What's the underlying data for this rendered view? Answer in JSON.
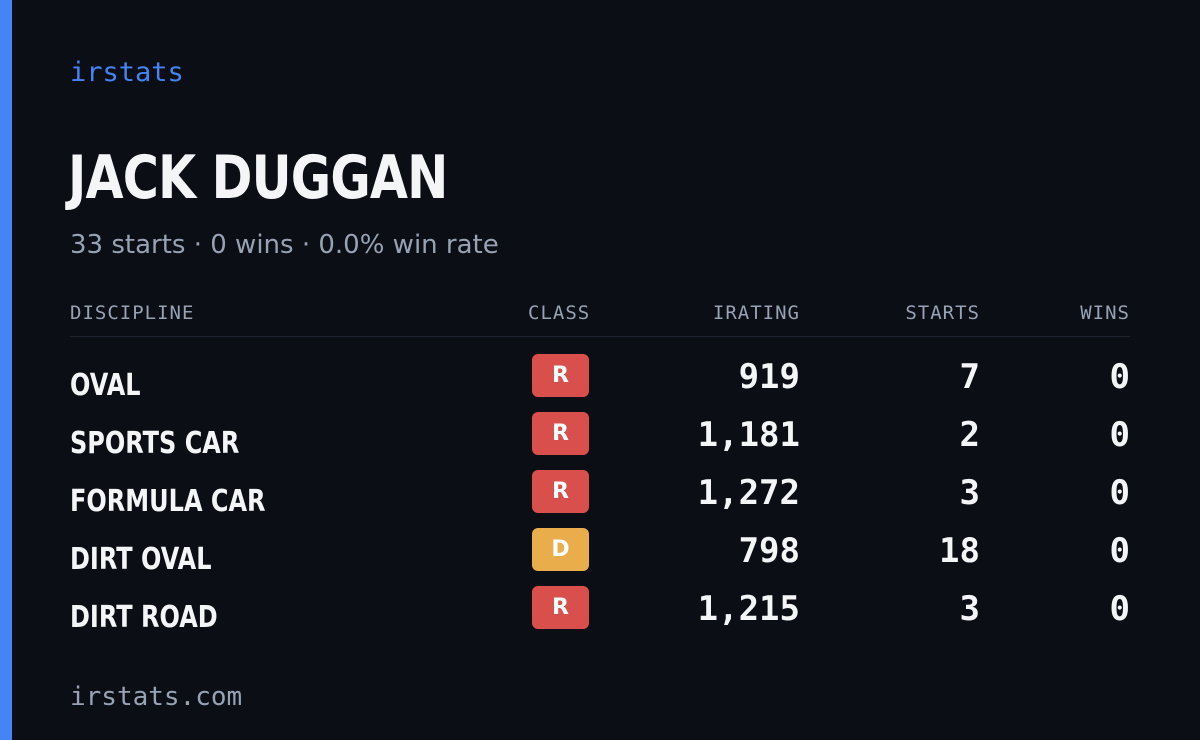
{
  "brand": "irstats",
  "driver": {
    "name": "JACK DUGGAN",
    "summary": "33 starts · 0 wins · 0.0% win rate"
  },
  "table": {
    "headers": {
      "discipline": "DISCIPLINE",
      "class": "CLASS",
      "irating": "IRATING",
      "starts": "STARTS",
      "wins": "WINS"
    },
    "rows": [
      {
        "discipline": "OVAL",
        "class": "R",
        "irating": "919",
        "starts": "7",
        "wins": "0"
      },
      {
        "discipline": "SPORTS CAR",
        "class": "R",
        "irating": "1,181",
        "starts": "2",
        "wins": "0"
      },
      {
        "discipline": "FORMULA CAR",
        "class": "R",
        "irating": "1,272",
        "starts": "3",
        "wins": "0"
      },
      {
        "discipline": "DIRT OVAL",
        "class": "D",
        "irating": "798",
        "starts": "18",
        "wins": "0"
      },
      {
        "discipline": "DIRT ROAD",
        "class": "R",
        "irating": "1,215",
        "starts": "3",
        "wins": "0"
      }
    ]
  },
  "class_colors": {
    "R": "#d94f4c",
    "D": "#e9ad4b"
  },
  "colors": {
    "accent": "#4584f4",
    "background": "#0b0e15",
    "text": "#f4f5f7",
    "muted": "#97a2b4"
  },
  "footer": "irstats.com"
}
